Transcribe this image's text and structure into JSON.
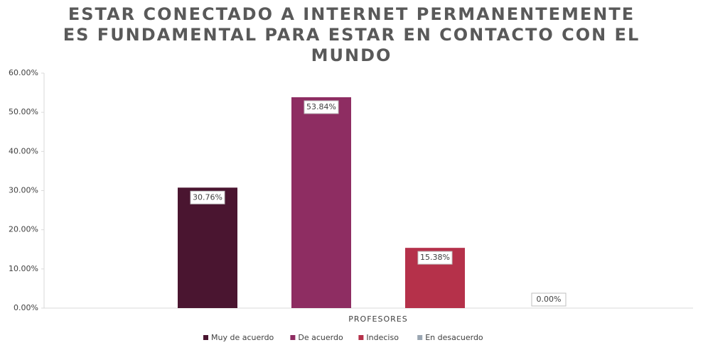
{
  "chart_data": {
    "type": "bar",
    "title": "ESTAR CONECTADO A INTERNET PERMANENTEMENTE ES FUNDAMENTAL PARA ESTAR EN CONTACTO CON EL MUNDO",
    "categories": [
      "PROFESORES"
    ],
    "series": [
      {
        "name": "Muy de acuerdo",
        "color": "#4a1530",
        "values": [
          30.76
        ],
        "value_labels": [
          "30.76%"
        ]
      },
      {
        "name": "De acuerdo",
        "color": "#8e2d62",
        "values": [
          53.84
        ],
        "value_labels": [
          "53.84%"
        ]
      },
      {
        "name": "Indeciso",
        "color": "#b5314a",
        "values": [
          15.38
        ],
        "value_labels": [
          "15.38%"
        ]
      },
      {
        "name": "En desacuerdo",
        "color": "#9aa6b2",
        "values": [
          0.0
        ],
        "value_labels": [
          "0.00%"
        ]
      }
    ],
    "ylim": [
      0,
      60
    ],
    "yticks": [
      {
        "value": 0,
        "label": "0.00%"
      },
      {
        "value": 10,
        "label": "10.00%"
      },
      {
        "value": 20,
        "label": "20.00%"
      },
      {
        "value": 30,
        "label": "30.00%"
      },
      {
        "value": 40,
        "label": "40.00%"
      },
      {
        "value": 50,
        "label": "50.00%"
      },
      {
        "value": 60,
        "label": "60.00%"
      }
    ],
    "legend": "bottom"
  }
}
